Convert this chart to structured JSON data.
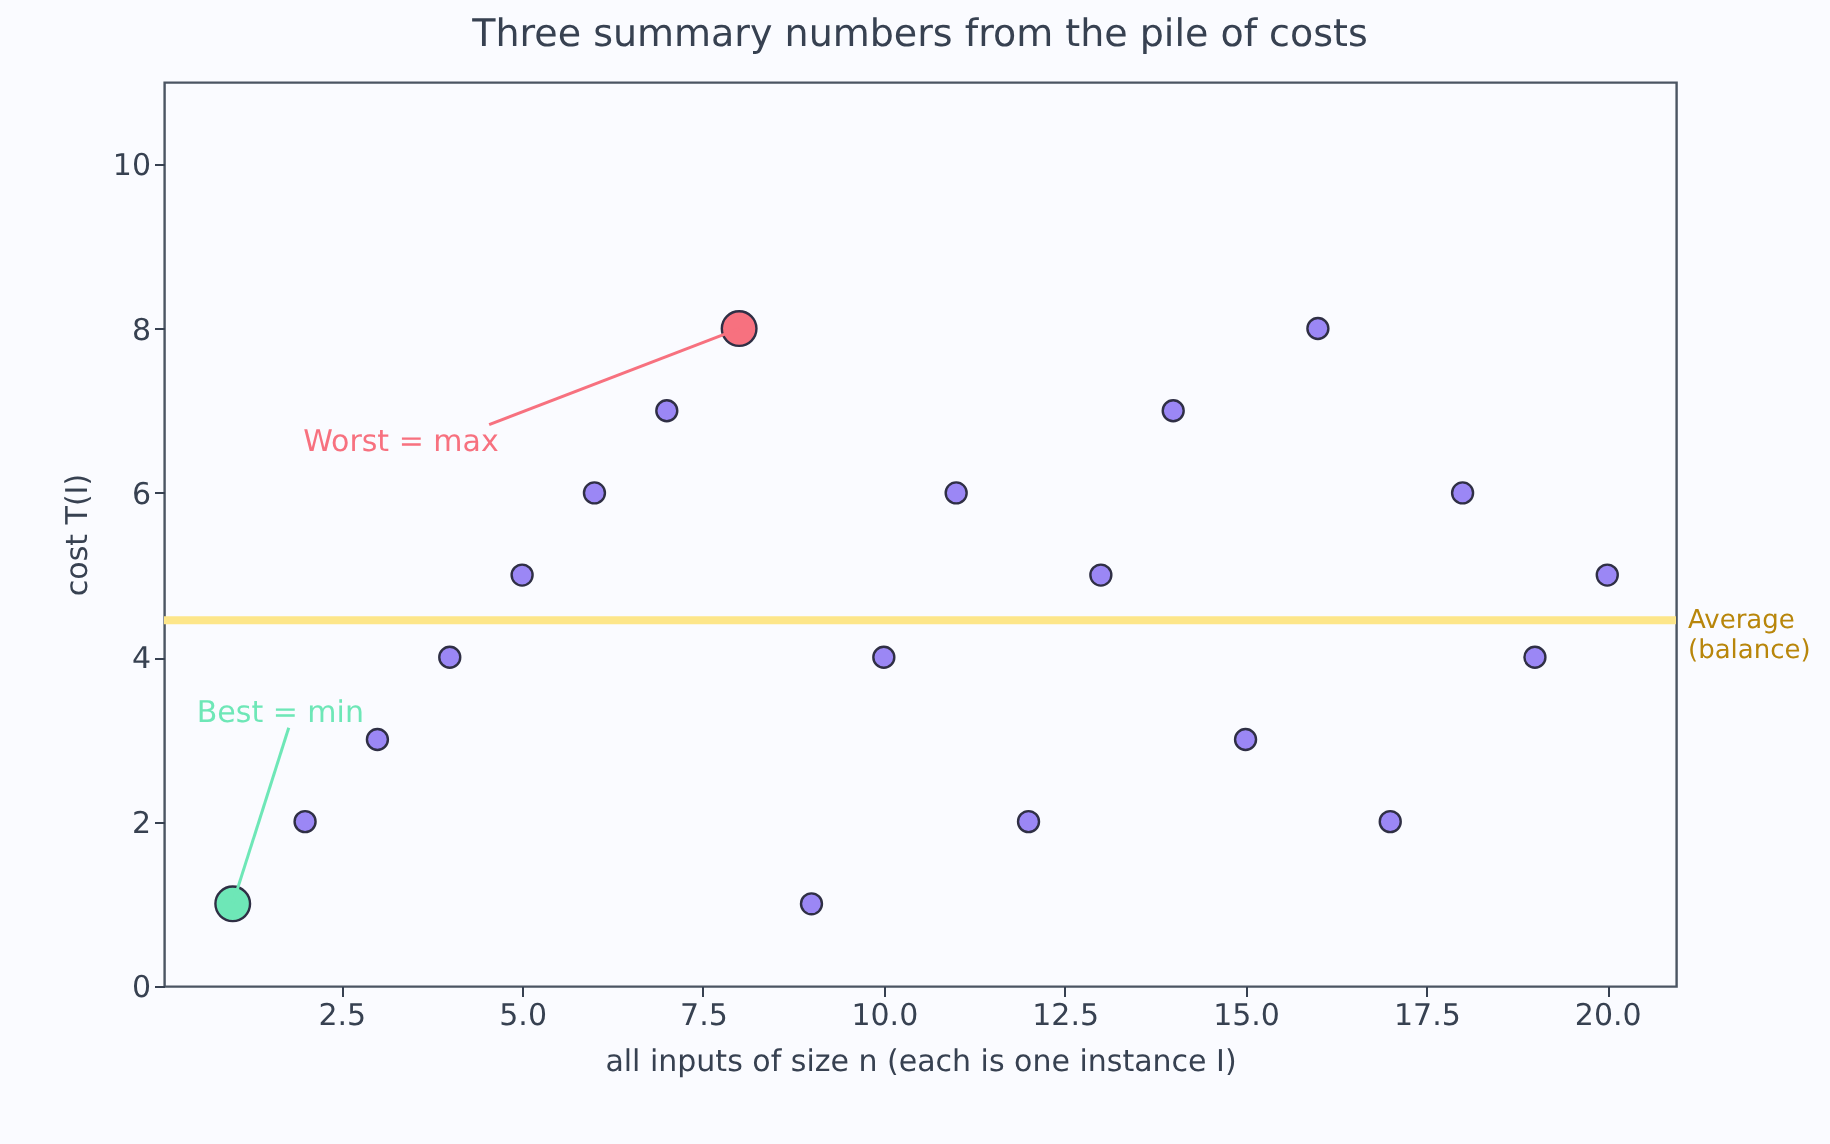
{
  "chart_data": {
    "type": "scatter",
    "title": "Three summary numbers from the pile of costs",
    "xlabel": "all inputs of size n  (each is one instance I)",
    "ylabel": "cost  T(I)",
    "x": [
      2,
      3,
      4,
      5,
      6,
      7,
      9,
      10,
      11,
      12,
      13,
      14,
      15,
      16,
      17,
      18,
      19,
      20
    ],
    "series": [
      {
        "color": "#9b87f5",
        "values": [
          2,
          3,
          4,
          5,
          6,
          7,
          1,
          4,
          6,
          2,
          5,
          7,
          3,
          8,
          2,
          6,
          4,
          5
        ]
      },
      {
        "color": "#6ee7b7",
        "x": [
          1
        ],
        "values": [
          1
        ]
      },
      {
        "color": "#f7717f",
        "x": [
          8
        ],
        "values": [
          8
        ]
      }
    ],
    "annotations": [
      {
        "text": "Best = min",
        "x": 1,
        "y": 1
      },
      {
        "text": "Worst = max",
        "x": 8,
        "y": 8
      }
    ],
    "ref_lines": [
      {
        "axis": "y",
        "value": 4.45,
        "label": "Average\n(balance)",
        "color": "#fde68a"
      }
    ],
    "xlim": [
      0.05,
      20.95
    ],
    "xticks": [
      2.5,
      {
        "value": 5,
        "label": "5.0"
      },
      7.5,
      {
        "value": 10,
        "label": "10.0"
      },
      12.5,
      {
        "value": 15,
        "label": "15.0"
      },
      17.5,
      {
        "value": 20,
        "label": "20.0"
      }
    ],
    "ylim": [
      0,
      11
    ],
    "yticks": [
      0,
      2,
      4,
      6,
      8,
      10
    ],
    "grid": false,
    "marker": "circle"
  }
}
